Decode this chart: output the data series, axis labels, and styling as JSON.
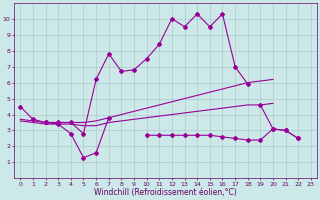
{
  "title": "",
  "xlabel": "Windchill (Refroidissement éolien,°C)",
  "background_color": "#cce8e8",
  "grid_color": "#aacccc",
  "line_color": "#990099",
  "xlim": [
    -0.5,
    23.5
  ],
  "ylim": [
    0,
    11
  ],
  "xticks": [
    0,
    1,
    2,
    3,
    4,
    5,
    6,
    7,
    8,
    9,
    10,
    11,
    12,
    13,
    14,
    15,
    16,
    17,
    18,
    19,
    20,
    21,
    22,
    23
  ],
  "yticks": [
    1,
    2,
    3,
    4,
    5,
    6,
    7,
    8,
    9,
    10
  ],
  "series": [
    {
      "x": [
        0,
        1,
        2,
        3,
        4,
        5,
        6,
        7,
        8,
        9,
        10,
        11,
        12,
        13,
        14,
        15,
        16,
        17,
        18,
        19,
        20,
        21,
        22,
        23
      ],
      "y": [
        4.5,
        3.7,
        3.5,
        3.5,
        3.5,
        2.8,
        6.2,
        7.8,
        6.7,
        6.8,
        7.5,
        8.4,
        10.0,
        9.5,
        10.3,
        9.5,
        10.3,
        7.0,
        5.9,
        null,
        null,
        null,
        null,
        null
      ],
      "marker": "D",
      "markersize": 2.0
    },
    {
      "x": [
        0,
        1,
        2,
        3,
        4,
        5,
        6,
        7,
        8,
        9,
        10,
        11,
        12,
        13,
        14,
        15,
        16,
        17,
        18,
        19,
        20,
        21,
        22,
        23
      ],
      "y": [
        3.7,
        3.6,
        3.5,
        3.5,
        3.5,
        3.5,
        3.6,
        3.8,
        4.0,
        4.2,
        4.4,
        4.6,
        4.8,
        5.0,
        5.2,
        5.4,
        5.6,
        5.8,
        6.0,
        6.1,
        6.2,
        null,
        null,
        null
      ],
      "marker": null,
      "markersize": 0
    },
    {
      "x": [
        0,
        1,
        2,
        3,
        4,
        5,
        6,
        7,
        8,
        9,
        10,
        11,
        12,
        13,
        14,
        15,
        16,
        17,
        18,
        19,
        20,
        21,
        22,
        23
      ],
      "y": [
        3.6,
        3.5,
        3.4,
        3.4,
        3.4,
        3.3,
        3.3,
        3.5,
        3.6,
        3.7,
        3.8,
        3.9,
        4.0,
        4.1,
        4.2,
        4.3,
        4.4,
        4.5,
        4.6,
        4.6,
        4.7,
        null,
        null,
        null
      ],
      "marker": null,
      "markersize": 0
    },
    {
      "x": [
        2,
        3,
        4,
        5,
        6,
        7,
        10,
        11,
        12,
        13,
        14,
        15,
        16,
        17,
        18,
        19,
        20,
        21,
        22
      ],
      "y": [
        3.5,
        3.4,
        2.8,
        1.3,
        1.6,
        3.8,
        2.7,
        2.7,
        2.7,
        2.7,
        2.7,
        2.7,
        2.6,
        2.5,
        2.4,
        2.4,
        3.1,
        3.0,
        2.5
      ],
      "marker": "D",
      "markersize": 2.0,
      "segments": [
        [
          2,
          3,
          4,
          5,
          6,
          7
        ],
        [
          10,
          11,
          12,
          13,
          14,
          15,
          16,
          17,
          18,
          19,
          20,
          21,
          22
        ]
      ]
    },
    {
      "x": [
        19,
        20,
        21,
        22
      ],
      "y": [
        4.6,
        3.1,
        3.0,
        2.5
      ],
      "marker": "D",
      "markersize": 2.0,
      "segments": null
    }
  ],
  "font_color": "#660066",
  "tick_fontsize": 4.5,
  "label_fontsize": 5.5
}
